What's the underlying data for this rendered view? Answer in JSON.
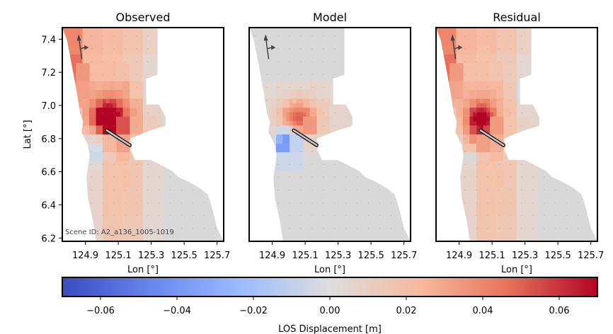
{
  "chart_data": {
    "type": "heatmap",
    "panels": [
      {
        "title": "Observed",
        "ylabel": "Lat [°]",
        "xlabel": "Lon [°]",
        "annotation": "Scene ID: A2_a136_1005-1019"
      },
      {
        "title": "Model",
        "xlabel": "Lon [°]"
      },
      {
        "title": "Residual",
        "xlabel": "Lon [°]"
      }
    ],
    "xlim": [
      124.76,
      125.74
    ],
    "ylim": [
      6.18,
      7.47
    ],
    "x_ticks": [
      124.9,
      125.1,
      125.3,
      125.5,
      125.7
    ],
    "x_tick_labels": [
      "124.9",
      "125.1",
      "125.3",
      "125.5",
      "125.7"
    ],
    "y_ticks": [
      6.2,
      6.4,
      6.6,
      6.8,
      7.0,
      7.2,
      7.4
    ],
    "y_tick_labels": [
      "6.2",
      "6.4",
      "6.6",
      "6.8",
      "7.0",
      "7.2",
      "7.4"
    ],
    "colorbar": {
      "label": "LOS Displacement [m]",
      "range": [
        -0.07,
        0.07
      ],
      "ticks": [
        -0.06,
        -0.04,
        -0.02,
        0.0,
        0.02,
        0.04,
        0.06
      ],
      "tick_labels": [
        "−0.06",
        "−0.04",
        "−0.02",
        "0.00",
        "0.02",
        "0.04",
        "0.06"
      ],
      "colormap": "coolwarm",
      "colors": [
        "#3b4cc0",
        "#7396f5",
        "#b0cbfc",
        "#dddddd",
        "#f6bfa6",
        "#ec7f63",
        "#b40426"
      ]
    },
    "fault_trace": {
      "lon": [
        125.03,
        125.17
      ],
      "lat": [
        6.85,
        6.76
      ]
    },
    "satellite_arrows": {
      "heading_lon": 124.87,
      "heading_lat": [
        7.28,
        7.43
      ],
      "look_lon": 124.92,
      "look_lat": 7.35
    },
    "masked_color": "#d8d8d8"
  }
}
